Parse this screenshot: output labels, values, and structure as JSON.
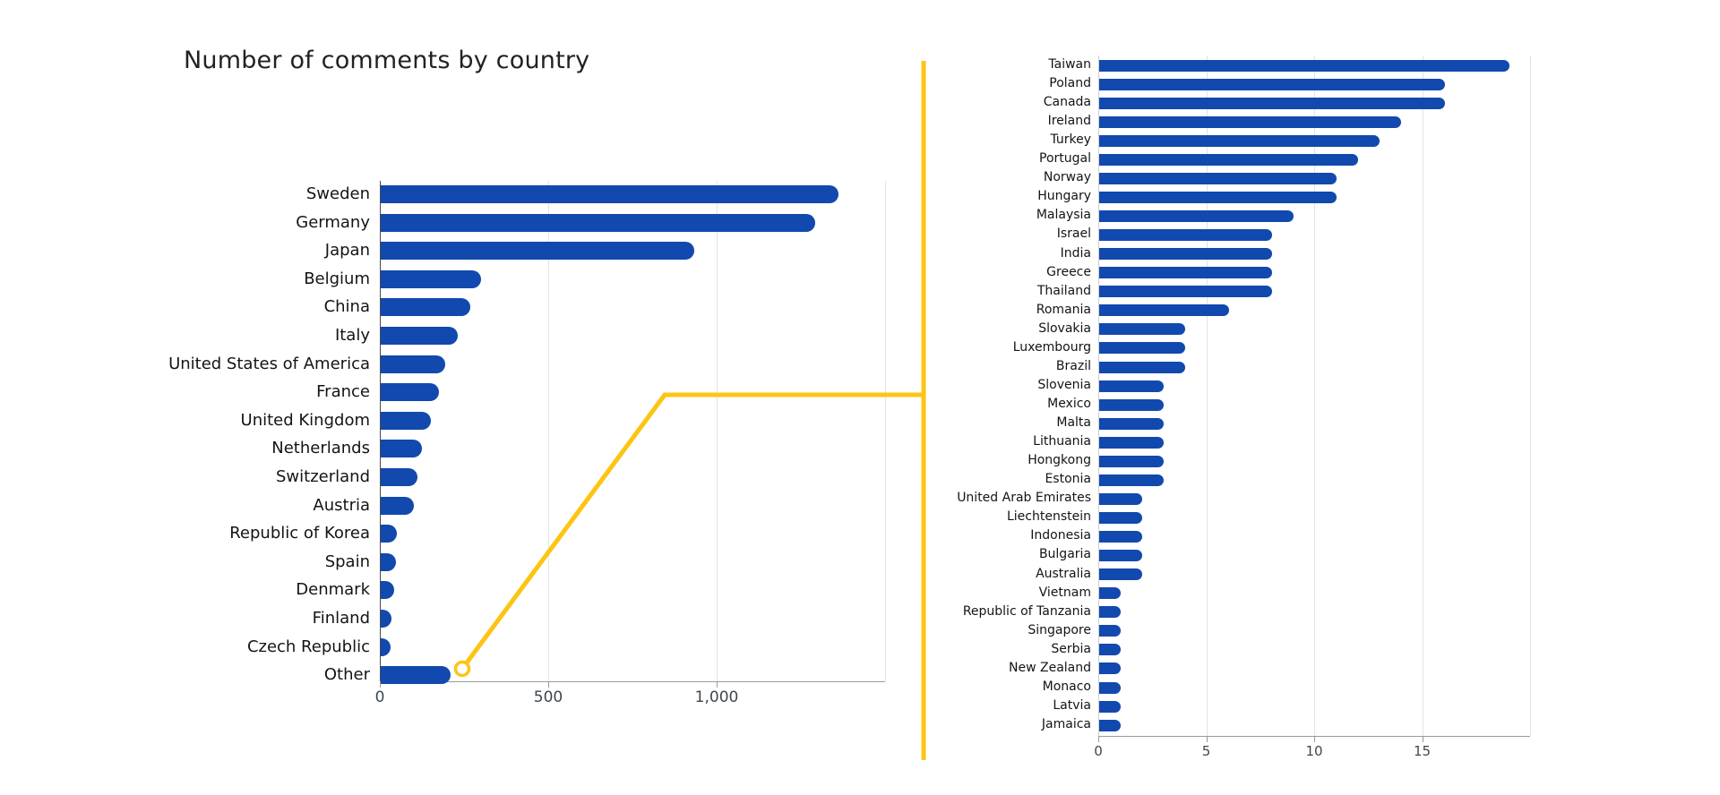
{
  "title": "Number of comments by country",
  "colors": {
    "bar": "#1149AE",
    "connector": "#FDC413",
    "gridline": "#E3E3E3",
    "axis_dark": "#4A4A4A",
    "axis_light": "#CFCFCF",
    "baseline": "#9A9A9A",
    "tick_text": "#3E4750",
    "label_text": "#141414",
    "title_text": "#222222"
  },
  "chart_data": [
    {
      "id": "comments-by-country",
      "type": "bar",
      "orientation": "horizontal",
      "title": "Number of comments by country",
      "categories": [
        "Sweden",
        "Germany",
        "Japan",
        "Belgium",
        "China",
        "Italy",
        "United States of America",
        "France",
        "United Kingdom",
        "Netherlands",
        "Switzerland",
        "Austria",
        "Republic of Korea",
        "Spain",
        "Denmark",
        "Finland",
        "Czech Republic",
        "Other"
      ],
      "values": [
        1360,
        1290,
        930,
        298,
        266,
        229,
        192,
        172,
        150,
        123,
        110,
        97,
        49,
        46,
        40,
        32,
        30,
        207
      ],
      "xlabel": "",
      "ylabel": "",
      "xlim": [
        0,
        1500
      ],
      "x_ticks": [
        {
          "value": 0,
          "label": "0"
        },
        {
          "value": 500,
          "label": "500"
        },
        {
          "value": 1000,
          "label": "1,000"
        }
      ],
      "grid_values": [
        500,
        1000,
        1500
      ],
      "grid": true,
      "legend": "none"
    },
    {
      "id": "other-breakdown",
      "type": "bar",
      "orientation": "horizontal",
      "title": "",
      "categories": [
        "Taiwan",
        "Poland",
        "Canada",
        "Ireland",
        "Turkey",
        "Portugal",
        "Norway",
        "Hungary",
        "Malaysia",
        "Israel",
        "India",
        "Greece",
        "Thailand",
        "Romania",
        "Slovakia",
        "Luxembourg",
        "Brazil",
        "Slovenia",
        "Mexico",
        "Malta",
        "Lithuania",
        "Hongkong",
        "Estonia",
        "United Arab Emirates",
        "Liechtenstein",
        "Indonesia",
        "Bulgaria",
        "Australia",
        "Vietnam",
        "Republic of Tanzania",
        "Singapore",
        "Serbia",
        "New Zealand",
        "Monaco",
        "Latvia",
        "Jamaica"
      ],
      "values": [
        19,
        16,
        16,
        14,
        13,
        12,
        11,
        11,
        9,
        8,
        8,
        8,
        8,
        6,
        4,
        4,
        4,
        3,
        3,
        3,
        3,
        3,
        3,
        2,
        2,
        2,
        2,
        2,
        1,
        1,
        1,
        1,
        1,
        1,
        1,
        1
      ],
      "xlabel": "",
      "ylabel": "",
      "xlim": [
        0,
        20
      ],
      "x_ticks": [
        {
          "value": 0,
          "label": "0"
        },
        {
          "value": 5,
          "label": "5"
        },
        {
          "value": 10,
          "label": "10"
        },
        {
          "value": 15,
          "label": "15"
        }
      ],
      "grid_values": [
        5,
        10,
        15,
        20
      ],
      "grid": true,
      "legend": "none"
    }
  ],
  "annotation": {
    "type": "zoom-connector",
    "from_category": "Other",
    "marker": "open-circle"
  }
}
